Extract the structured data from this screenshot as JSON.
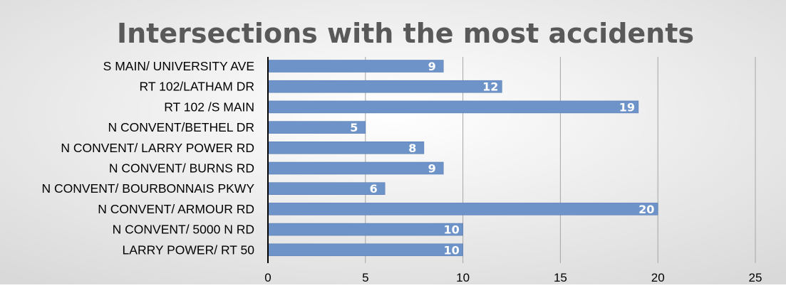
{
  "chart_data": {
    "type": "bar",
    "orientation": "horizontal",
    "title": "Intersections with the most accidents",
    "categories": [
      "S MAIN/ UNIVERSITY AVE",
      "RT 102/LATHAM DR",
      "RT 102 /S MAIN",
      "N CONVENT/BETHEL DR",
      "N CONVENT/ LARRY POWER RD",
      "N CONVENT/ BURNS RD",
      "N CONVENT/ BOURBONNAIS PKWY",
      "N CONVENT/ ARMOUR RD",
      "N CONVENT/ 5000 N RD",
      "LARRY POWER/ RT 50"
    ],
    "values": [
      9,
      12,
      19,
      5,
      8,
      9,
      6,
      20,
      10,
      10
    ],
    "xlim": [
      0,
      25
    ],
    "xticks": [
      0,
      5,
      10,
      15,
      20,
      25
    ],
    "xlabel": "",
    "ylabel": "",
    "grid": true,
    "legend": false,
    "data_labels": true,
    "colors": {
      "bar": "#6d93c8",
      "bar_edge": "#5a7fb5",
      "title": "#595959",
      "grid": "#a6a6a6",
      "axis": "#000000",
      "background_light": "#ffffff",
      "background_dark": "#d9d9d9"
    }
  }
}
